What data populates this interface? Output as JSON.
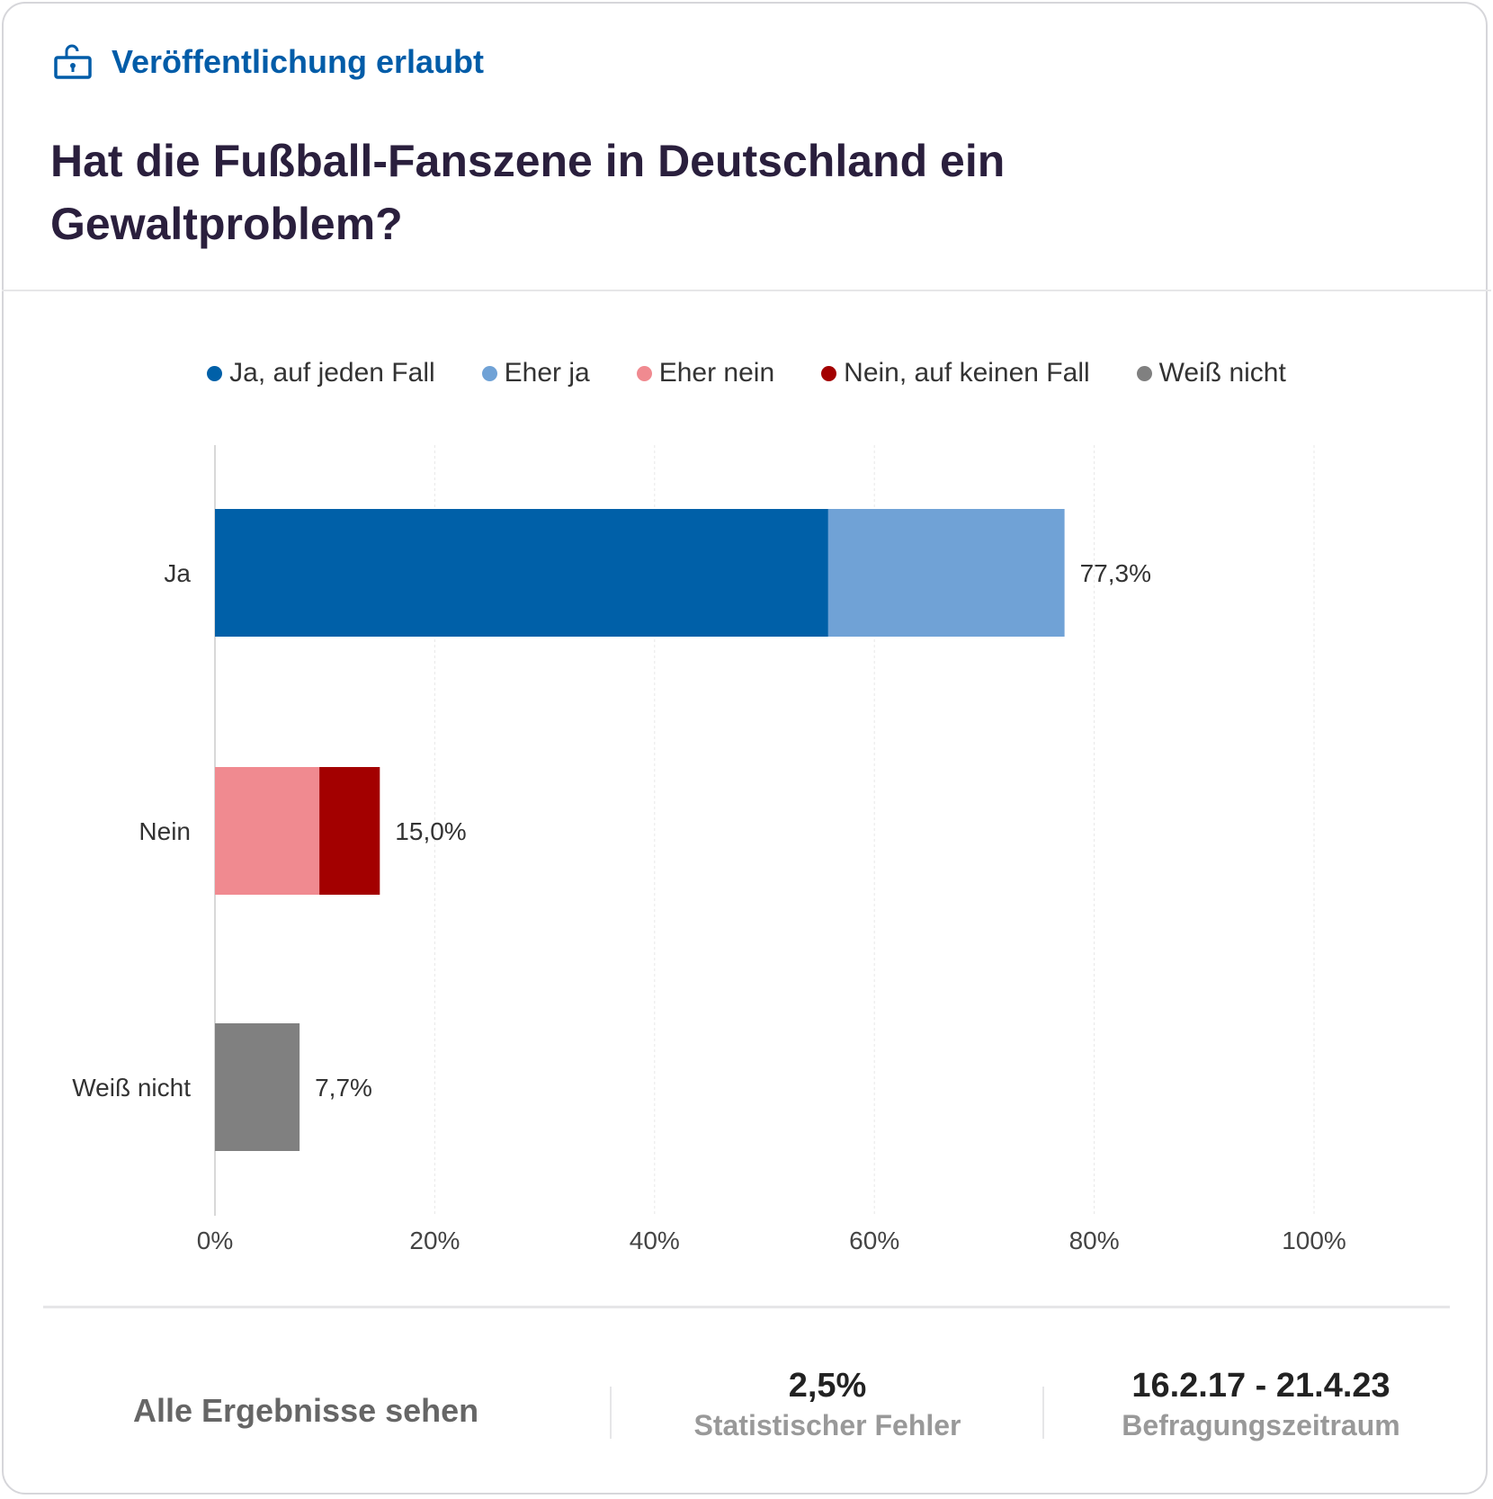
{
  "header": {
    "permission_label": "Veröffentlichung erlaubt",
    "permission_icon": "unlock-icon",
    "title": "Hat die Fußball-Fanszene in Deutschland ein Gewaltproblem?"
  },
  "chart_data": {
    "type": "bar",
    "orientation": "horizontal",
    "stacked": true,
    "categories": [
      "Ja",
      "Nein",
      "Weiß nicht"
    ],
    "series": [
      {
        "name": "Ja, auf jeden Fall",
        "color": "#0060a8",
        "values": [
          55.8,
          0,
          0
        ]
      },
      {
        "name": "Eher ja",
        "color": "#70a2d6",
        "values": [
          21.5,
          0,
          0
        ]
      },
      {
        "name": "Eher nein",
        "color": "#f08a90",
        "values": [
          0,
          9.5,
          0
        ]
      },
      {
        "name": "Nein, auf keinen Fall",
        "color": "#a30000",
        "values": [
          0,
          5.5,
          0
        ]
      },
      {
        "name": "Weiß nicht",
        "color": "#808080",
        "values": [
          0,
          0,
          7.7
        ]
      }
    ],
    "totals": [
      "77,3%",
      "15,0%",
      "7,7%"
    ],
    "xlim": [
      0,
      100
    ],
    "xticks": [
      "0%",
      "20%",
      "40%",
      "60%",
      "80%",
      "100%"
    ],
    "grid": true,
    "legend": "top"
  },
  "footer": {
    "link_label": "Alle Ergebnisse sehen",
    "error_value": "2,5%",
    "error_label": "Statistischer Fehler",
    "period_value": "16.2.17 - 21.4.23",
    "period_label": "Befragungszeitraum"
  }
}
